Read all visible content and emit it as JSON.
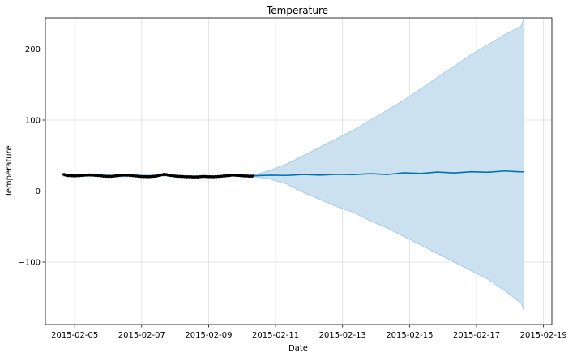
{
  "chart_data": {
    "type": "line",
    "title": "Temperature",
    "xlabel": "Date",
    "ylabel": "Temperature",
    "x_range": [
      "2015-02-04 03:00",
      "2015-02-19 06:00"
    ],
    "ylim": [
      -188,
      244
    ],
    "grid": true,
    "x_ticks": [
      "2015-02-05",
      "2015-02-07",
      "2015-02-09",
      "2015-02-11",
      "2015-02-13",
      "2015-02-15",
      "2015-02-17",
      "2015-02-19"
    ],
    "y_ticks": [
      -100,
      0,
      100,
      200
    ],
    "y_tick_labels": [
      "−100",
      "0",
      "100",
      "200"
    ],
    "colors": {
      "forecast": "#0072B2",
      "interval": "#cce1ef",
      "interval_edge": "#a6cde6",
      "observed": "#000000",
      "grid": "#dddddd"
    },
    "observed": {
      "x_start": "2015-02-04 16:00",
      "x_end": "2015-02-10 08:00",
      "values": [
        23.5,
        21.8,
        21.5,
        21.4,
        21.7,
        22.4,
        22.8,
        22.6,
        22.1,
        21.6,
        21.0,
        20.6,
        20.8,
        21.5,
        22.3,
        22.7,
        22.4,
        21.8,
        21.2,
        20.6,
        20.3,
        20.2,
        20.5,
        21.2,
        22.4,
        23.7,
        22.6,
        21.5,
        21.0,
        20.6,
        20.3,
        20.1,
        19.9,
        19.8,
        20.4,
        20.6,
        20.3,
        20.1,
        20.4,
        20.8,
        21.3,
        22.0,
        22.6,
        22.2,
        21.6,
        21.2,
        21.0,
        21.0
      ]
    },
    "forecast": {
      "dates": [
        "2015-02-04 16:00",
        "2015-02-05 06:00",
        "2015-02-05 18:00",
        "2015-02-06 06:00",
        "2015-02-06 18:00",
        "2015-02-07 06:00",
        "2015-02-07 16:00",
        "2015-02-08 06:00",
        "2015-02-08 16:00",
        "2015-02-09 06:00",
        "2015-02-09 18:00",
        "2015-02-10 08:00",
        "2015-02-10 20:00",
        "2015-02-11 08:00",
        "2015-02-11 20:00",
        "2015-02-12 08:00",
        "2015-02-12 20:00",
        "2015-02-13 08:00",
        "2015-02-13 20:00",
        "2015-02-14 08:00",
        "2015-02-14 20:00",
        "2015-02-15 08:00",
        "2015-02-15 20:00",
        "2015-02-16 08:00",
        "2015-02-16 20:00",
        "2015-02-17 08:00",
        "2015-02-17 20:00",
        "2015-02-18 08:00",
        "2015-02-18 10:00"
      ],
      "yhat": [
        22.0,
        21.5,
        22.2,
        21.0,
        21.6,
        21.4,
        22.3,
        20.5,
        20.8,
        20.4,
        21.8,
        21.5,
        22.4,
        22.0,
        23.4,
        22.5,
        23.6,
        23.2,
        24.5,
        23.3,
        25.8,
        24.8,
        26.8,
        25.5,
        27.2,
        26.5,
        28.3,
        27.0,
        27.4
      ],
      "lower": [
        21.0,
        20.5,
        21.2,
        20.0,
        20.6,
        20.4,
        21.3,
        19.5,
        19.8,
        19.4,
        20.8,
        20.5,
        17.0,
        10.0,
        -2.0,
        -12.0,
        -22.0,
        -30.0,
        -42.0,
        -52.0,
        -64.0,
        -76.0,
        -88.0,
        -100.0,
        -112.0,
        -124.0,
        -140.0,
        -158.0,
        -168.0
      ],
      "upper": [
        23.0,
        22.5,
        23.2,
        22.0,
        22.6,
        22.4,
        23.3,
        21.5,
        21.8,
        21.4,
        22.8,
        22.5,
        29.0,
        38.0,
        50.0,
        62.0,
        74.0,
        86.0,
        100.0,
        114.0,
        128.0,
        144.0,
        160.0,
        176.0,
        192.0,
        206.0,
        220.0,
        232.0,
        244.0
      ]
    }
  }
}
